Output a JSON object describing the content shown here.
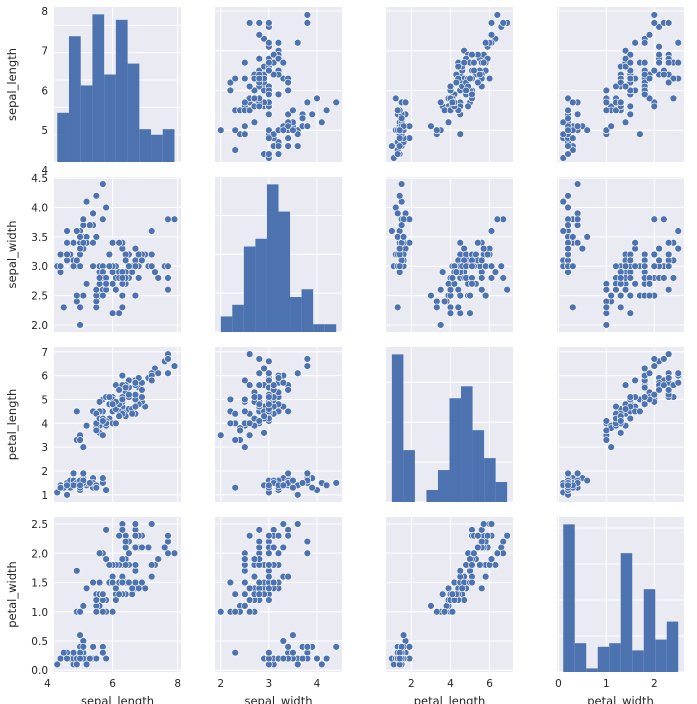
{
  "chart_data": {
    "type": "scatter",
    "title": "",
    "variables": [
      "sepal_length",
      "sepal_width",
      "petal_length",
      "petal_width"
    ],
    "axes": {
      "sepal_length": {
        "lim": [
          4.2,
          8.1
        ],
        "ticks": [
          4,
          6,
          8
        ],
        "yticks": [
          4,
          5,
          6,
          7,
          8
        ]
      },
      "sepal_width": {
        "lim": [
          1.88,
          4.52
        ],
        "ticks": [
          2,
          3,
          4
        ],
        "yticks": [
          2.0,
          2.5,
          3.0,
          3.5,
          4.0,
          4.5
        ]
      },
      "petal_length": {
        "lim": [
          0.7,
          7.2
        ],
        "ticks": [
          2,
          4,
          6
        ],
        "yticks": [
          1,
          2,
          3,
          4,
          5,
          6,
          7
        ]
      },
      "petal_width": {
        "lim": [
          -0.03,
          2.62
        ],
        "ticks": [
          0,
          1,
          2
        ],
        "yticks": [
          0.0,
          0.5,
          1.0,
          1.5,
          2.0,
          2.5
        ]
      }
    },
    "histograms": [
      {
        "variable": "sepal_length",
        "edges": [
          4.3,
          4.66,
          5.02,
          5.38,
          5.74,
          6.1,
          6.46,
          6.82,
          7.18,
          7.54,
          7.9
        ],
        "counts": [
          9,
          23,
          14,
          27,
          16,
          26,
          18,
          6,
          5,
          6
        ]
      },
      {
        "variable": "sepal_width",
        "edges": [
          2.0,
          2.24,
          2.48,
          2.72,
          2.96,
          3.2,
          3.44,
          3.68,
          3.92,
          4.16,
          4.4
        ],
        "counts": [
          4,
          7,
          22,
          24,
          38,
          31,
          9,
          11,
          2,
          2
        ]
      },
      {
        "variable": "petal_length",
        "edges": [
          1.0,
          1.59,
          2.18,
          2.77,
          3.36,
          3.95,
          4.54,
          5.13,
          5.72,
          6.31,
          6.9
        ],
        "counts": [
          37,
          13,
          0,
          3,
          8,
          26,
          29,
          18,
          11,
          5
        ]
      },
      {
        "variable": "petal_width",
        "edges": [
          0.1,
          0.34,
          0.58,
          0.82,
          1.06,
          1.3,
          1.54,
          1.78,
          2.02,
          2.26,
          2.5
        ],
        "counts": [
          41,
          8,
          1,
          7,
          8,
          33,
          6,
          23,
          9,
          14
        ]
      }
    ],
    "observations": [
      [
        5.1,
        3.5,
        1.4,
        0.2
      ],
      [
        4.9,
        3.0,
        1.4,
        0.2
      ],
      [
        4.7,
        3.2,
        1.3,
        0.2
      ],
      [
        4.6,
        3.1,
        1.5,
        0.2
      ],
      [
        5.0,
        3.6,
        1.4,
        0.2
      ],
      [
        5.4,
        3.9,
        1.7,
        0.4
      ],
      [
        4.6,
        3.4,
        1.4,
        0.3
      ],
      [
        5.0,
        3.4,
        1.5,
        0.2
      ],
      [
        4.4,
        2.9,
        1.4,
        0.2
      ],
      [
        4.9,
        3.1,
        1.5,
        0.1
      ],
      [
        5.4,
        3.7,
        1.5,
        0.2
      ],
      [
        4.8,
        3.4,
        1.6,
        0.2
      ],
      [
        4.8,
        3.0,
        1.4,
        0.1
      ],
      [
        4.3,
        3.0,
        1.1,
        0.1
      ],
      [
        5.8,
        4.0,
        1.2,
        0.2
      ],
      [
        5.7,
        4.4,
        1.5,
        0.4
      ],
      [
        5.4,
        3.9,
        1.3,
        0.4
      ],
      [
        5.1,
        3.5,
        1.4,
        0.3
      ],
      [
        5.7,
        3.8,
        1.7,
        0.3
      ],
      [
        5.1,
        3.8,
        1.5,
        0.3
      ],
      [
        5.4,
        3.4,
        1.7,
        0.2
      ],
      [
        5.1,
        3.7,
        1.5,
        0.4
      ],
      [
        4.6,
        3.6,
        1.0,
        0.2
      ],
      [
        5.1,
        3.3,
        1.7,
        0.5
      ],
      [
        4.8,
        3.4,
        1.9,
        0.2
      ],
      [
        5.0,
        3.0,
        1.6,
        0.2
      ],
      [
        5.0,
        3.4,
        1.6,
        0.4
      ],
      [
        5.2,
        3.5,
        1.5,
        0.2
      ],
      [
        5.2,
        3.4,
        1.4,
        0.2
      ],
      [
        4.7,
        3.2,
        1.6,
        0.2
      ],
      [
        4.8,
        3.1,
        1.6,
        0.2
      ],
      [
        5.4,
        3.4,
        1.5,
        0.4
      ],
      [
        5.2,
        4.1,
        1.5,
        0.1
      ],
      [
        5.5,
        4.2,
        1.4,
        0.2
      ],
      [
        4.9,
        3.1,
        1.5,
        0.2
      ],
      [
        5.0,
        3.2,
        1.2,
        0.2
      ],
      [
        5.5,
        3.5,
        1.3,
        0.2
      ],
      [
        4.9,
        3.6,
        1.4,
        0.1
      ],
      [
        4.4,
        3.0,
        1.3,
        0.2
      ],
      [
        5.1,
        3.4,
        1.5,
        0.2
      ],
      [
        5.0,
        3.5,
        1.3,
        0.3
      ],
      [
        4.5,
        2.3,
        1.3,
        0.3
      ],
      [
        4.4,
        3.2,
        1.3,
        0.2
      ],
      [
        5.0,
        3.5,
        1.6,
        0.6
      ],
      [
        5.1,
        3.8,
        1.9,
        0.4
      ],
      [
        4.8,
        3.0,
        1.4,
        0.3
      ],
      [
        5.1,
        3.8,
        1.6,
        0.2
      ],
      [
        4.6,
        3.2,
        1.4,
        0.2
      ],
      [
        5.3,
        3.7,
        1.5,
        0.2
      ],
      [
        5.0,
        3.3,
        1.4,
        0.2
      ],
      [
        7.0,
        3.2,
        4.7,
        1.4
      ],
      [
        6.4,
        3.2,
        4.5,
        1.5
      ],
      [
        6.9,
        3.1,
        4.9,
        1.5
      ],
      [
        5.5,
        2.3,
        4.0,
        1.3
      ],
      [
        6.5,
        2.8,
        4.6,
        1.5
      ],
      [
        5.7,
        2.8,
        4.5,
        1.3
      ],
      [
        6.3,
        3.3,
        4.7,
        1.6
      ],
      [
        4.9,
        2.4,
        3.3,
        1.0
      ],
      [
        6.6,
        2.9,
        4.6,
        1.3
      ],
      [
        5.2,
        2.7,
        3.9,
        1.4
      ],
      [
        5.0,
        2.0,
        3.5,
        1.0
      ],
      [
        5.9,
        3.0,
        4.2,
        1.5
      ],
      [
        6.0,
        2.2,
        4.0,
        1.0
      ],
      [
        6.1,
        2.9,
        4.7,
        1.4
      ],
      [
        5.6,
        2.9,
        3.6,
        1.3
      ],
      [
        6.7,
        3.1,
        4.4,
        1.4
      ],
      [
        5.6,
        3.0,
        4.5,
        1.5
      ],
      [
        5.8,
        2.7,
        4.1,
        1.0
      ],
      [
        6.2,
        2.2,
        4.5,
        1.5
      ],
      [
        5.6,
        2.5,
        3.9,
        1.1
      ],
      [
        5.9,
        3.2,
        4.8,
        1.8
      ],
      [
        6.1,
        2.8,
        4.0,
        1.3
      ],
      [
        6.3,
        2.5,
        4.9,
        1.5
      ],
      [
        6.1,
        2.8,
        4.7,
        1.2
      ],
      [
        6.4,
        2.9,
        4.3,
        1.3
      ],
      [
        6.6,
        3.0,
        4.4,
        1.4
      ],
      [
        6.8,
        2.8,
        4.8,
        1.4
      ],
      [
        6.7,
        3.0,
        5.0,
        1.7
      ],
      [
        6.0,
        2.9,
        4.5,
        1.5
      ],
      [
        5.7,
        2.6,
        3.5,
        1.0
      ],
      [
        5.5,
        2.4,
        3.8,
        1.1
      ],
      [
        5.5,
        2.4,
        3.7,
        1.0
      ],
      [
        5.8,
        2.7,
        3.9,
        1.2
      ],
      [
        6.0,
        2.7,
        5.1,
        1.6
      ],
      [
        5.4,
        3.0,
        4.5,
        1.5
      ],
      [
        6.0,
        3.4,
        4.5,
        1.6
      ],
      [
        6.7,
        3.1,
        4.7,
        1.5
      ],
      [
        6.3,
        2.3,
        4.4,
        1.3
      ],
      [
        5.6,
        3.0,
        4.1,
        1.3
      ],
      [
        5.5,
        2.5,
        4.0,
        1.3
      ],
      [
        5.5,
        2.6,
        4.4,
        1.2
      ],
      [
        6.1,
        3.0,
        4.6,
        1.4
      ],
      [
        5.8,
        2.6,
        4.0,
        1.2
      ],
      [
        5.0,
        2.3,
        3.3,
        1.0
      ],
      [
        5.6,
        2.7,
        4.2,
        1.3
      ],
      [
        5.7,
        3.0,
        4.2,
        1.2
      ],
      [
        5.7,
        2.9,
        4.2,
        1.3
      ],
      [
        6.2,
        2.9,
        4.3,
        1.3
      ],
      [
        5.1,
        2.5,
        3.0,
        1.1
      ],
      [
        5.7,
        2.8,
        4.1,
        1.3
      ],
      [
        6.3,
        3.3,
        6.0,
        2.5
      ],
      [
        5.8,
        2.7,
        5.1,
        1.9
      ],
      [
        7.1,
        3.0,
        5.9,
        2.1
      ],
      [
        6.3,
        2.9,
        5.6,
        1.8
      ],
      [
        6.5,
        3.0,
        5.8,
        2.2
      ],
      [
        7.6,
        3.0,
        6.6,
        2.1
      ],
      [
        4.9,
        2.5,
        4.5,
        1.7
      ],
      [
        7.3,
        2.9,
        6.3,
        1.8
      ],
      [
        6.7,
        2.5,
        5.8,
        1.8
      ],
      [
        7.2,
        3.6,
        6.1,
        2.5
      ],
      [
        6.5,
        3.2,
        5.1,
        2.0
      ],
      [
        6.4,
        2.7,
        5.3,
        1.9
      ],
      [
        6.8,
        3.0,
        5.5,
        2.1
      ],
      [
        5.7,
        2.5,
        5.0,
        2.0
      ],
      [
        5.8,
        2.8,
        5.1,
        2.4
      ],
      [
        6.4,
        3.2,
        5.3,
        2.3
      ],
      [
        6.5,
        3.0,
        5.5,
        1.8
      ],
      [
        7.7,
        3.8,
        6.7,
        2.2
      ],
      [
        7.7,
        2.6,
        6.9,
        2.3
      ],
      [
        6.0,
        2.2,
        5.0,
        1.5
      ],
      [
        6.9,
        3.2,
        5.7,
        2.3
      ],
      [
        5.6,
        2.8,
        4.9,
        2.0
      ],
      [
        7.7,
        2.8,
        6.7,
        2.0
      ],
      [
        6.3,
        2.7,
        4.9,
        1.8
      ],
      [
        6.7,
        3.3,
        5.7,
        2.1
      ],
      [
        7.2,
        3.2,
        6.0,
        1.8
      ],
      [
        6.2,
        2.8,
        4.8,
        1.8
      ],
      [
        6.1,
        3.0,
        4.9,
        1.8
      ],
      [
        6.4,
        2.8,
        5.6,
        2.1
      ],
      [
        7.2,
        3.0,
        5.8,
        1.6
      ],
      [
        7.4,
        2.8,
        6.1,
        1.9
      ],
      [
        7.9,
        3.8,
        6.4,
        2.0
      ],
      [
        6.4,
        2.8,
        5.6,
        2.2
      ],
      [
        6.3,
        2.8,
        5.1,
        1.5
      ],
      [
        6.1,
        2.6,
        5.6,
        1.4
      ],
      [
        7.7,
        3.0,
        6.1,
        2.3
      ],
      [
        6.3,
        3.4,
        5.6,
        2.4
      ],
      [
        6.4,
        3.1,
        5.5,
        1.8
      ],
      [
        6.0,
        3.0,
        4.8,
        1.8
      ],
      [
        6.9,
        3.1,
        5.4,
        2.1
      ],
      [
        6.7,
        3.1,
        5.6,
        2.4
      ],
      [
        6.9,
        3.1,
        5.1,
        2.3
      ],
      [
        5.8,
        2.7,
        5.1,
        1.9
      ],
      [
        6.8,
        3.2,
        5.9,
        2.3
      ],
      [
        6.7,
        3.3,
        5.7,
        2.5
      ],
      [
        6.7,
        3.0,
        5.2,
        2.3
      ],
      [
        6.3,
        2.5,
        5.0,
        1.9
      ],
      [
        6.5,
        3.0,
        5.2,
        2.0
      ],
      [
        6.2,
        3.4,
        5.4,
        2.3
      ],
      [
        5.9,
        3.0,
        5.1,
        1.8
      ]
    ]
  }
}
